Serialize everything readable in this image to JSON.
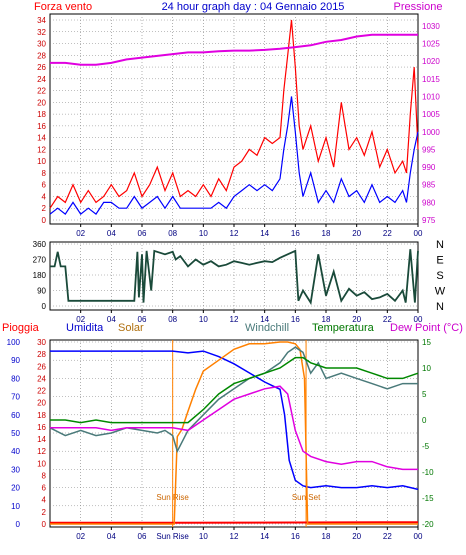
{
  "header": {
    "left_label": "Forza vento",
    "title": "24 hour graph day : 04 Gennaio 2015",
    "right_label": "Pressione"
  },
  "colors": {
    "red": "#ff0000",
    "blue": "#0000ff",
    "magenta": "#e000e0",
    "darkgreen": "#1a4a3a",
    "green": "#008800",
    "olive": "#b07010",
    "slate": "#4a7a7a",
    "orange": "#ff8000",
    "navy": "#000080",
    "plot_bg": "#ffffff",
    "grid": "#808080"
  },
  "x_ticks": [
    "02",
    "04",
    "06",
    "08",
    "10",
    "12",
    "14",
    "16",
    "18",
    "20",
    "22",
    "00"
  ],
  "bottom_x_ticks": [
    "02",
    "04",
    "06",
    "Sun Rise",
    "10",
    "12",
    "14",
    "16",
    "18",
    "20",
    "22",
    "00"
  ],
  "chart_data": [
    {
      "type": "line",
      "name": "wind-pressure",
      "x_range": [
        0,
        24
      ],
      "y_left": {
        "label": "Forza vento",
        "ticks": [
          0,
          2,
          4,
          6,
          8,
          10,
          12,
          14,
          16,
          18,
          20,
          22,
          24,
          26,
          28,
          30,
          32,
          34
        ]
      },
      "y_right": {
        "label": "Pressione",
        "ticks": [
          975,
          980,
          985,
          990,
          995,
          1000,
          1005,
          1010,
          1015,
          1020,
          1025,
          1030
        ]
      },
      "series": [
        {
          "key": "gust",
          "color_key": "red",
          "axis": "left",
          "x": [
            0,
            0.5,
            1,
            1.5,
            2,
            2.5,
            3,
            3.5,
            4,
            4.5,
            5,
            5.5,
            6,
            6.5,
            7,
            7.5,
            8,
            8.5,
            9,
            9.5,
            10,
            10.5,
            11,
            11.5,
            12,
            12.5,
            13,
            13.5,
            14,
            14.5,
            15,
            15.25,
            15.5,
            15.75,
            16,
            16.25,
            16.5,
            17,
            17.5,
            18,
            18.5,
            19,
            19.5,
            20,
            20.5,
            21,
            21.5,
            22,
            22.5,
            23,
            23.25,
            23.5,
            23.75,
            24
          ],
          "y": [
            2,
            4,
            3,
            6,
            3,
            5,
            3,
            4,
            6,
            4,
            5,
            8,
            4,
            6,
            9,
            5,
            8,
            4,
            5,
            4,
            6,
            4,
            7,
            5,
            9,
            10,
            12,
            11,
            14,
            13,
            14,
            22,
            28,
            34,
            26,
            16,
            12,
            16,
            10,
            14,
            9,
            20,
            12,
            14,
            11,
            15,
            9,
            12,
            8,
            10,
            8,
            18,
            26,
            12
          ]
        },
        {
          "key": "wind",
          "color_key": "blue",
          "axis": "left",
          "x": [
            0,
            0.5,
            1,
            1.5,
            2,
            2.5,
            3,
            3.5,
            4,
            4.5,
            5,
            5.5,
            6,
            6.5,
            7,
            7.5,
            8,
            8.5,
            9,
            9.5,
            10,
            10.5,
            11,
            11.5,
            12,
            12.5,
            13,
            13.5,
            14,
            14.5,
            15,
            15.25,
            15.5,
            15.75,
            16,
            16.25,
            16.5,
            17,
            17.5,
            18,
            18.5,
            19,
            19.5,
            20,
            20.5,
            21,
            21.5,
            22,
            22.5,
            23,
            23.25,
            23.5,
            23.75,
            24
          ],
          "y": [
            1,
            2,
            1,
            3,
            1,
            2,
            1,
            3,
            3,
            2,
            2,
            4,
            2,
            3,
            4,
            2,
            4,
            2,
            2,
            2,
            2,
            2,
            3,
            2,
            4,
            5,
            6,
            5,
            6,
            5,
            7,
            12,
            16,
            21,
            15,
            8,
            4,
            8,
            3,
            5,
            3,
            7,
            4,
            5,
            3,
            6,
            3,
            4,
            3,
            5,
            3,
            8,
            12,
            15
          ]
        },
        {
          "key": "pressure",
          "color_key": "magenta",
          "axis": "right",
          "x": [
            0,
            1,
            2,
            3,
            4,
            5,
            6,
            7,
            8,
            9,
            10,
            11,
            12,
            13,
            14,
            15,
            16,
            17,
            18,
            19,
            20,
            21,
            22,
            23,
            24
          ],
          "y": [
            1019.5,
            1019.5,
            1019,
            1019,
            1019.5,
            1020.5,
            1021,
            1021.5,
            1022,
            1022.5,
            1022.5,
            1022.8,
            1023,
            1023,
            1023.2,
            1023.5,
            1024,
            1024.5,
            1025.5,
            1026,
            1027,
            1027.5,
            1027.5,
            1027.5,
            1027.5
          ]
        }
      ]
    },
    {
      "type": "line",
      "name": "wind-direction",
      "x_range": [
        0,
        24
      ],
      "y_left": {
        "ticks": [
          0,
          90,
          180,
          270,
          360
        ]
      },
      "y_right": {
        "ticks": [
          "N",
          "W",
          "S",
          "E",
          "N"
        ]
      },
      "series": [
        {
          "key": "direction",
          "color_key": "darkgreen",
          "axis": "left",
          "x": [
            0,
            0.3,
            0.5,
            0.7,
            1,
            1.2,
            4,
            5.5,
            5.7,
            5.8,
            6,
            6.1,
            6.3,
            6.6,
            6.8,
            7.5,
            8,
            8.2,
            8.5,
            9,
            9.5,
            10,
            10.5,
            11,
            11.5,
            12,
            12.5,
            13,
            13.5,
            14,
            14.5,
            15,
            15.5,
            16,
            16.2,
            16.5,
            17,
            17.5,
            18,
            18.5,
            19,
            19.5,
            20,
            20.5,
            21,
            21.5,
            22,
            22.5,
            23,
            23.2,
            23.5,
            23.8,
            24
          ],
          "y": [
            230,
            230,
            315,
            230,
            230,
            30,
            30,
            30,
            315,
            50,
            300,
            20,
            320,
            90,
            320,
            300,
            315,
            270,
            290,
            230,
            270,
            240,
            260,
            230,
            240,
            260,
            250,
            240,
            250,
            260,
            255,
            280,
            300,
            320,
            30,
            90,
            20,
            300,
            60,
            200,
            30,
            100,
            60,
            80,
            40,
            50,
            70,
            30,
            90,
            20,
            330,
            20,
            320
          ]
        }
      ]
    },
    {
      "type": "line",
      "name": "rain-humidity-temperature",
      "x_range": [
        0,
        24
      ],
      "y_left_rain": {
        "label": "Pioggia",
        "ticks": [
          0,
          2,
          4,
          6,
          8,
          10,
          12,
          14,
          16,
          18,
          20,
          22,
          24,
          26,
          28,
          30
        ]
      },
      "y_left_hum": {
        "label": "Umidita",
        "ticks": [
          0,
          10,
          20,
          30,
          40,
          50,
          60,
          70,
          80,
          90,
          100
        ]
      },
      "y_right": {
        "label": "Dew Point (°C)",
        "ticks": [
          -20,
          -15,
          -10,
          -5,
          0,
          5,
          10,
          15
        ]
      },
      "labels": [
        "Solar",
        "Windchill",
        "Temperatura"
      ],
      "events": [
        {
          "label": "Sun Rise",
          "x": 8.0
        },
        {
          "label": "Sun Set",
          "x": 16.7
        }
      ],
      "series": [
        {
          "key": "rain",
          "color_key": "red",
          "axis": "rain",
          "x": [
            0,
            8,
            24
          ],
          "y": [
            0.2,
            0.2,
            0.3
          ]
        },
        {
          "key": "humidity",
          "color_key": "blue",
          "axis": "hum",
          "x": [
            0,
            1,
            2,
            3,
            4,
            5,
            6,
            7,
            8,
            9,
            10,
            11,
            12,
            13,
            14,
            14.5,
            15,
            15.3,
            15.6,
            16,
            16.5,
            17,
            18,
            19,
            20,
            21,
            22,
            23,
            24
          ],
          "y": [
            95,
            95,
            95,
            95,
            95,
            95,
            95,
            95,
            95,
            94,
            95,
            92,
            88,
            83,
            78,
            76,
            74,
            60,
            35,
            24,
            21,
            20,
            21,
            20,
            20,
            21,
            20,
            21,
            19
          ]
        },
        {
          "key": "solar",
          "color_key": "orange",
          "axis": "hum",
          "x": [
            0,
            7.8,
            8.1,
            8.3,
            8.6,
            9,
            9.5,
            10,
            11,
            12,
            13,
            14,
            15,
            15.5,
            16,
            16.3,
            16.6,
            16.8,
            24
          ],
          "y": [
            0,
            0,
            0,
            48,
            52,
            62,
            74,
            84,
            90,
            96,
            99,
            99,
            100,
            100,
            99,
            96,
            80,
            0,
            0
          ]
        },
        {
          "key": "windchill",
          "color_key": "slate",
          "axis": "right",
          "x": [
            0,
            1,
            2,
            3,
            4,
            5,
            6,
            7,
            7.5,
            8,
            8.3,
            9,
            10,
            11,
            12,
            13,
            14,
            15,
            15.5,
            16,
            16.5,
            17,
            17.5,
            18,
            19,
            20,
            21,
            22,
            23,
            24
          ],
          "y": [
            -1.5,
            -3,
            -2,
            -3,
            -2.5,
            -1.5,
            -2,
            -2.5,
            -2,
            -3,
            -6,
            -2,
            1,
            4,
            6,
            8,
            9,
            11,
            13,
            14,
            13,
            9,
            11,
            8,
            9,
            8,
            7,
            6,
            7,
            7
          ]
        },
        {
          "key": "temperatura",
          "color_key": "green",
          "axis": "right",
          "x": [
            0,
            1,
            2,
            3,
            4,
            5,
            6,
            7,
            8,
            9,
            10,
            11,
            12,
            13,
            14,
            15,
            15.5,
            16,
            16.5,
            17,
            18,
            19,
            20,
            21,
            22,
            23,
            24
          ],
          "y": [
            0,
            0,
            -0.5,
            0,
            -0.5,
            -0.5,
            -0.5,
            -0.5,
            -0.5,
            -0.5,
            2,
            5,
            7,
            8,
            9,
            10,
            11,
            12,
            12,
            11,
            10,
            10,
            10,
            9,
            8,
            8,
            9
          ]
        },
        {
          "key": "dewpoint",
          "color_key": "magenta",
          "axis": "right",
          "x": [
            0,
            1,
            2,
            3,
            4,
            5,
            6,
            7,
            8,
            9,
            10,
            11,
            12,
            13,
            14,
            15,
            15.5,
            16,
            16.5,
            17,
            18,
            19,
            20,
            21,
            22,
            23,
            24
          ],
          "y": [
            -1.5,
            -1.5,
            -1.5,
            -1.5,
            -2,
            -1.5,
            -1.5,
            -1.5,
            -1.5,
            -2,
            0,
            2,
            4,
            5,
            6,
            6.5,
            5,
            -2,
            -6,
            -7,
            -8,
            -8.5,
            -8,
            -8,
            -9,
            -9.5,
            -9.5
          ]
        }
      ]
    }
  ]
}
